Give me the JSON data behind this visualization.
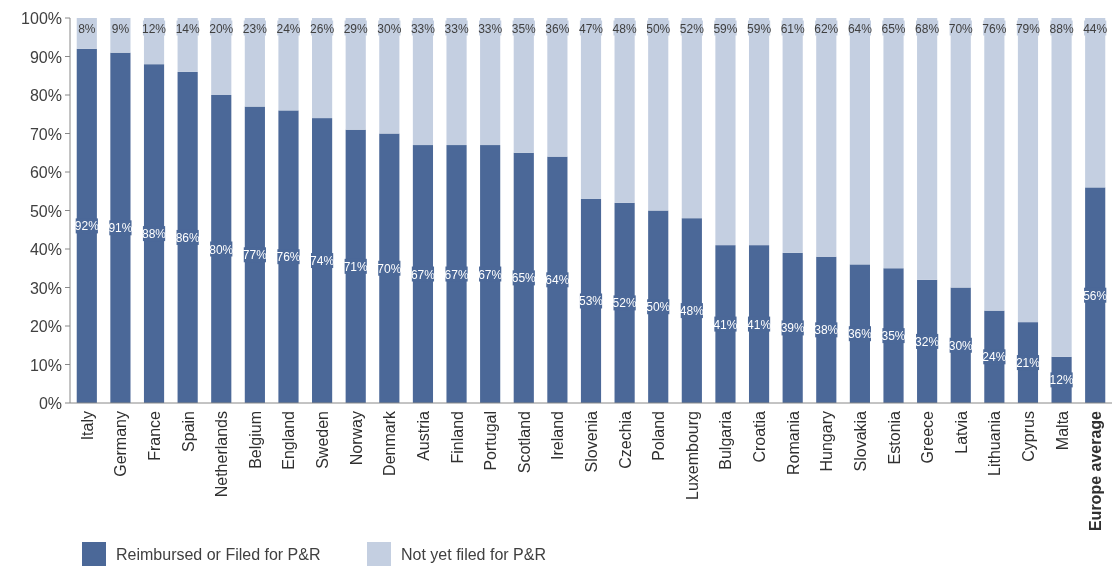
{
  "chart_data": {
    "type": "bar",
    "stacked": true,
    "legend": "bottom left",
    "grid": false,
    "categories": [
      "Italy",
      "Germany",
      "France",
      "Spain",
      "Netherlands",
      "Belgium",
      "England",
      "Sweden",
      "Norway",
      "Denmark",
      "Austria",
      "Finland",
      "Portugal",
      "Scotland",
      "Ireland",
      "Slovenia",
      "Czechia",
      "Poland",
      "Luxembourg",
      "Bulgaria",
      "Croatia",
      "Romania",
      "Hungary",
      "Slovakia",
      "Estonia",
      "Greece",
      "Latvia",
      "Lithuania",
      "Cyprus",
      "Malta",
      "Europe average"
    ],
    "series": [
      {
        "name": "Reimbursed or Filed for P&R",
        "color": "#4b6898",
        "values": [
          92,
          91,
          88,
          86,
          80,
          77,
          76,
          74,
          71,
          70,
          67,
          67,
          67,
          65,
          64,
          53,
          52,
          50,
          48,
          41,
          41,
          39,
          38,
          36,
          35,
          32,
          30,
          24,
          21,
          12,
          56
        ],
        "value_labels": [
          "92%",
          "91%",
          "88%",
          "86%",
          "80%",
          "77%",
          "76%",
          "74%",
          "71%",
          "70%",
          "67%",
          "67%",
          "67%",
          "65%",
          "64%",
          "53%",
          "52%",
          "50%",
          "48%",
          "41%",
          "41%",
          "39%",
          "38%",
          "36%",
          "35%",
          "32%",
          "30%",
          "24%",
          "21%",
          "12%",
          "56%"
        ]
      },
      {
        "name": "Not yet filed for P&R",
        "color": "#c4cfe1",
        "values": [
          8,
          9,
          12,
          14,
          20,
          23,
          24,
          26,
          29,
          30,
          33,
          33,
          33,
          35,
          36,
          47,
          48,
          50,
          52,
          59,
          59,
          61,
          62,
          64,
          65,
          68,
          70,
          76,
          79,
          88,
          44
        ],
        "value_labels": [
          "8%",
          "9%",
          "12%",
          "14%",
          "20%",
          "23%",
          "24%",
          "26%",
          "29%",
          "30%",
          "33%",
          "33%",
          "33%",
          "35%",
          "36%",
          "47%",
          "48%",
          "50%",
          "52%",
          "59%",
          "59%",
          "61%",
          "62%",
          "64%",
          "65%",
          "68%",
          "70%",
          "76%",
          "79%",
          "88%",
          "44%"
        ]
      }
    ],
    "ylim": [
      0,
      100
    ],
    "yticks": [
      {
        "value": 0,
        "label": "0%"
      },
      {
        "value": 10,
        "label": "10%"
      },
      {
        "value": 20,
        "label": "20%"
      },
      {
        "value": 30,
        "label": "30%"
      },
      {
        "value": 40,
        "label": "40%"
      },
      {
        "value": 50,
        "label": "50%"
      },
      {
        "value": 60,
        "label": "60%"
      },
      {
        "value": 70,
        "label": "70%"
      },
      {
        "value": 80,
        "label": "80%"
      },
      {
        "value": 90,
        "label": "90%"
      },
      {
        "value": 100,
        "label": "100%"
      }
    ]
  }
}
